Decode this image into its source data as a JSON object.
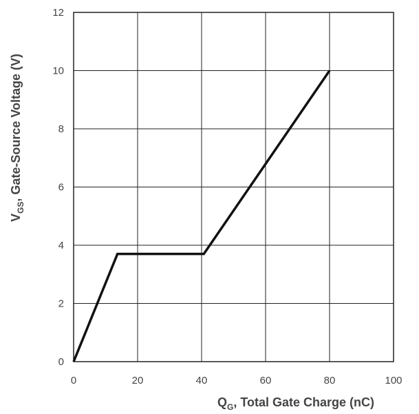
{
  "chart_data": {
    "type": "line",
    "x_label": {
      "main": "Q",
      "sub": "G",
      "rest": ", Total Gate Charge (nC)"
    },
    "y_label": {
      "main": "V",
      "sub": "GS",
      "rest": ",  Gate-Source Voltage (V)"
    },
    "xlim": [
      0,
      100
    ],
    "ylim": [
      0,
      12
    ],
    "x_ticks": [
      0,
      20,
      40,
      60,
      80,
      100
    ],
    "y_ticks": [
      0,
      2,
      4,
      6,
      8,
      10,
      12
    ],
    "grid": true,
    "series": [
      {
        "x": [
          0,
          13.7,
          40.7,
          80
        ],
        "y": [
          0,
          3.7,
          3.7,
          10
        ]
      }
    ]
  }
}
